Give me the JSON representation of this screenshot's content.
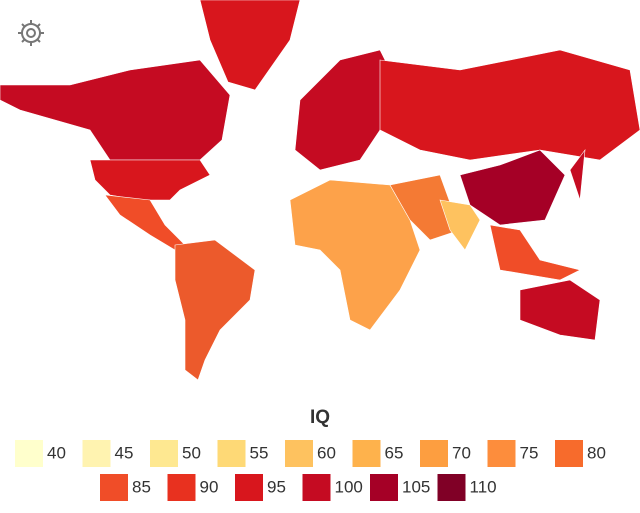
{
  "legend": {
    "title": "IQ",
    "items": [
      {
        "value": 40,
        "color": "#ffffcc"
      },
      {
        "value": 45,
        "color": "#fff3b0"
      },
      {
        "value": 50,
        "color": "#fee891"
      },
      {
        "value": 55,
        "color": "#fed976"
      },
      {
        "value": 60,
        "color": "#fec25f"
      },
      {
        "value": 65,
        "color": "#feb24c"
      },
      {
        "value": 70,
        "color": "#fd9e40"
      },
      {
        "value": 75,
        "color": "#fd8d3c"
      },
      {
        "value": 80,
        "color": "#f76b2c"
      },
      {
        "value": 85,
        "color": "#f04d28"
      },
      {
        "value": 90,
        "color": "#e8311f"
      },
      {
        "value": 95,
        "color": "#d8161d"
      },
      {
        "value": 100,
        "color": "#c50b22"
      },
      {
        "value": 105,
        "color": "#a50026"
      },
      {
        "value": 110,
        "color": "#800026"
      }
    ]
  }
}
